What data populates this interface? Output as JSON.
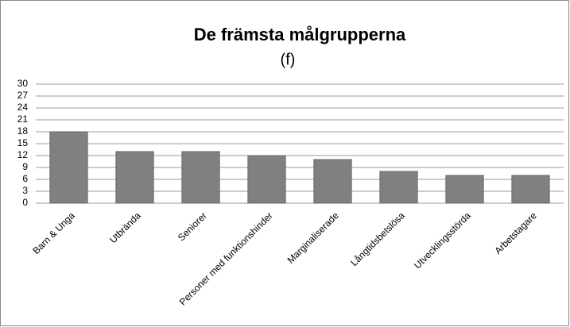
{
  "chart_data": {
    "type": "bar",
    "title": "De främsta målgrupperna",
    "subtitle": "(f)",
    "categories": [
      "Barn & Unga",
      "Utbrända",
      "Seniorer",
      "Personer med funktionshinder",
      "Marginaliserade",
      "Långtidsbetslösa",
      "Utvecklingsstörda",
      "Arbetstagare"
    ],
    "values": [
      18,
      13,
      13,
      12,
      11,
      8,
      7,
      7
    ],
    "color": "#808080",
    "ylim": [
      0,
      30
    ],
    "yticks": [
      0,
      3,
      6,
      9,
      12,
      15,
      18,
      21,
      24,
      27,
      30
    ],
    "grid": true
  }
}
